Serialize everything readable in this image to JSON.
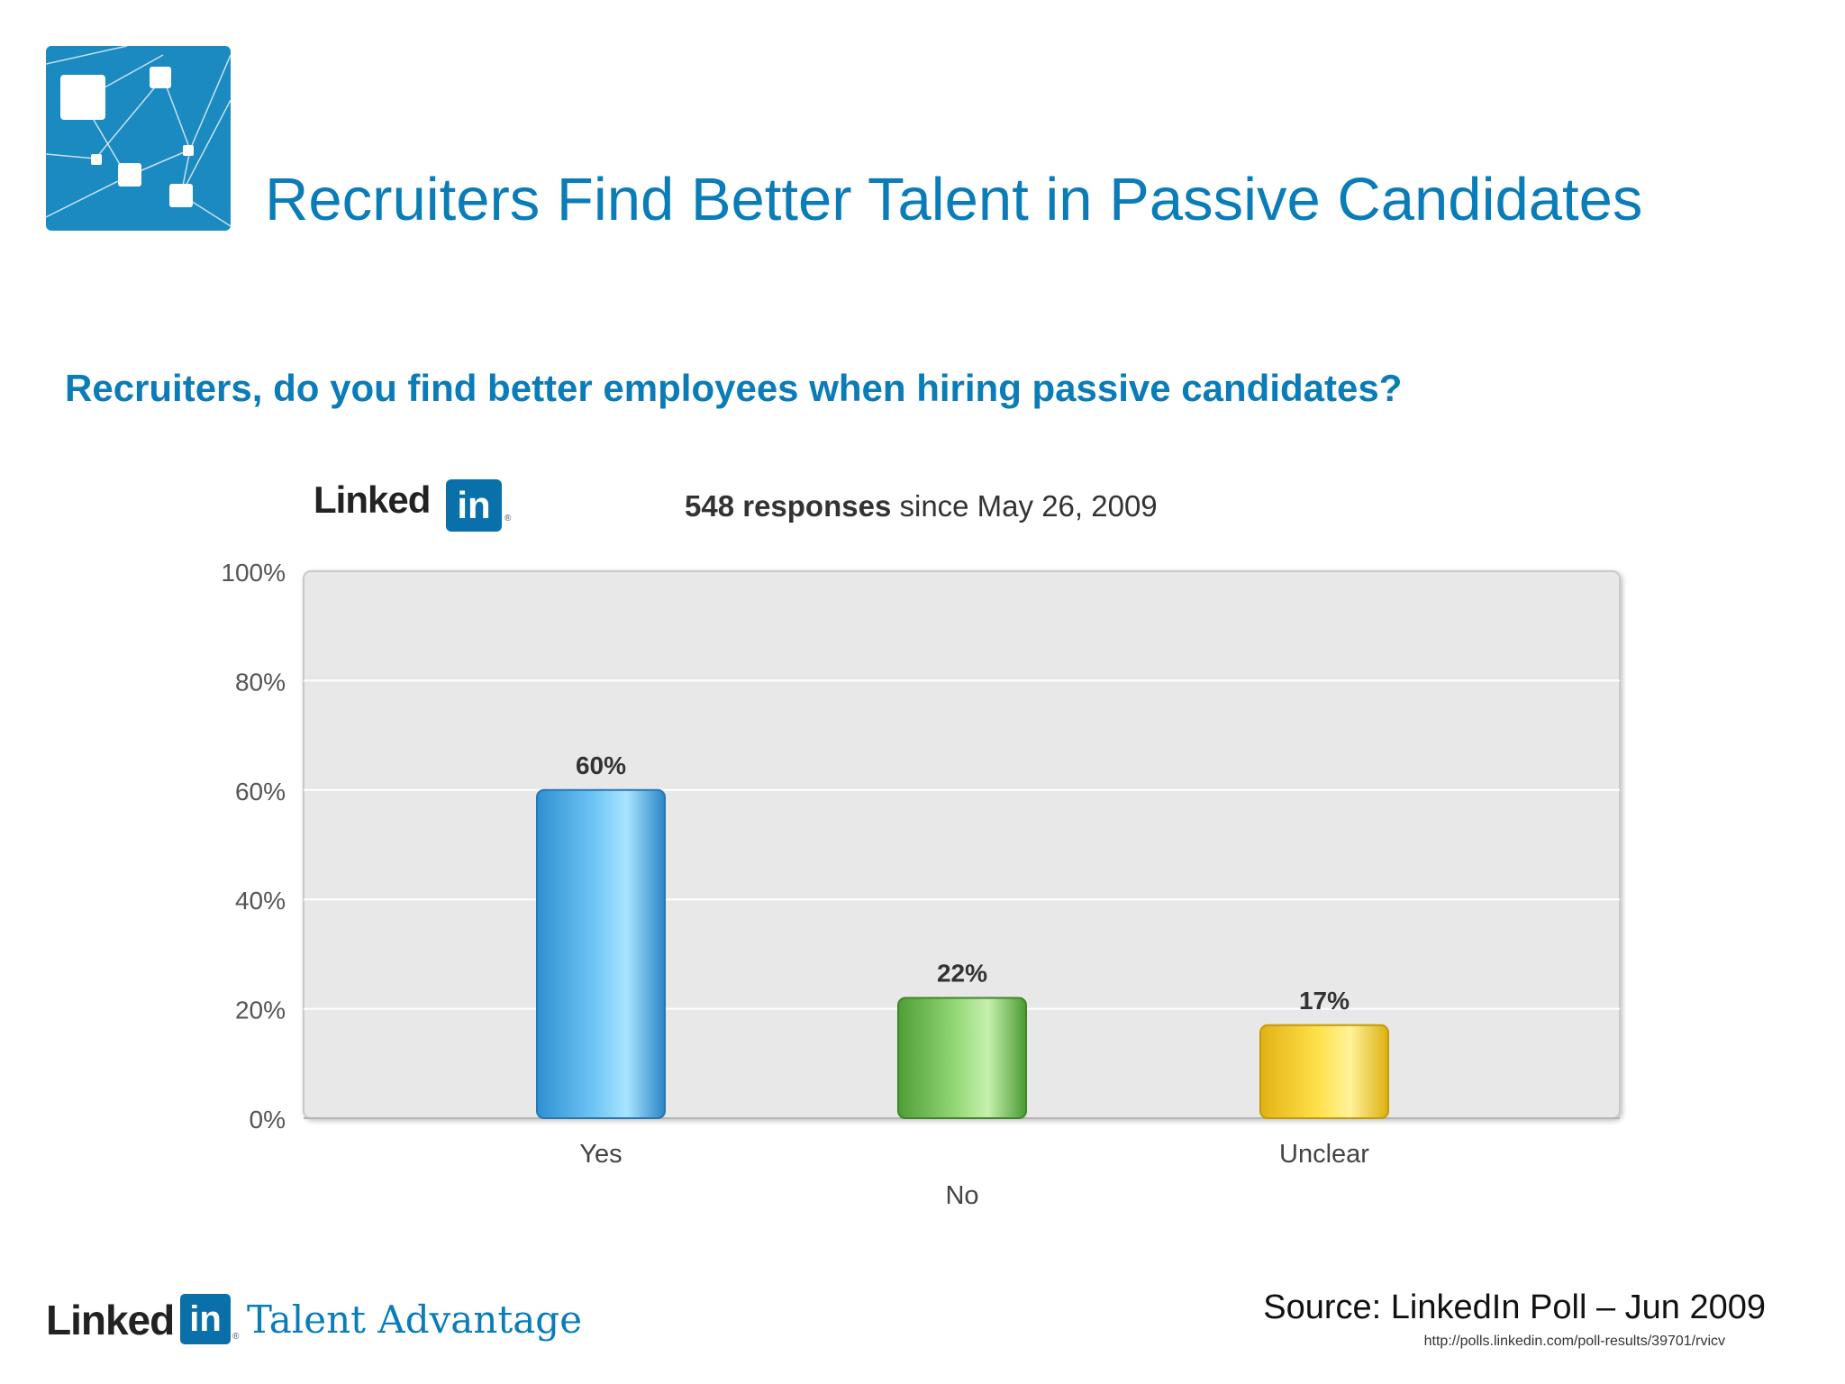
{
  "slide": {
    "title": "Recruiters Find Better Talent in Passive Candidates",
    "question": "Recruiters, do you find better employees when hiring passive candidates?"
  },
  "poll_header": {
    "brand_word": "Linked",
    "brand_in": "in",
    "registered": "®",
    "responses_bold": "548 responses",
    "responses_rest": " since May 26, 2009"
  },
  "footer": {
    "brand_word": "Linked",
    "brand_in": "in",
    "registered": "®",
    "product": "Talent Advantage",
    "source": "Source: LinkedIn Poll – Jun 2009",
    "url": "http://polls.linkedin.com/poll-results/39701/rvicv"
  },
  "colors": {
    "brand_blue": "#0a7cb8",
    "bar_yes": "#4aa9e3",
    "bar_no": "#7cc85a",
    "bar_unclear": "#f2d23c",
    "plot_bg": "#e8e8e8"
  },
  "chart_data": {
    "type": "bar",
    "categories": [
      "Yes",
      "No",
      "Unclear"
    ],
    "values": [
      60,
      22,
      17
    ],
    "value_labels": [
      "60%",
      "22%",
      "17%"
    ],
    "ylim": [
      0,
      100
    ],
    "yticks": [
      "0%",
      "20%",
      "40%",
      "60%",
      "80%",
      "100%"
    ],
    "grid": true
  }
}
